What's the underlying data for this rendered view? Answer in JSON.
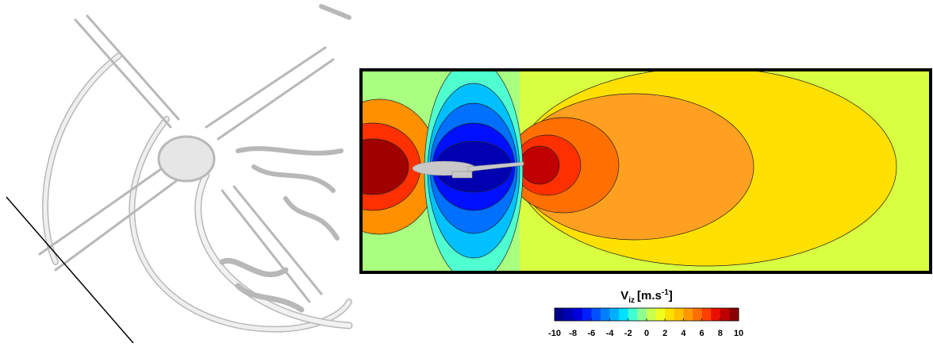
{
  "chart_data": {
    "type": "colorbar",
    "title": {
      "symbol": "V",
      "subscript": "iz",
      "unit": "[m.s",
      "superscript": "-1",
      "close": "]"
    },
    "clim": [
      -10,
      10
    ],
    "ticks": [
      -10,
      -8,
      -6,
      -4,
      -2,
      0,
      2,
      4,
      6,
      8,
      10
    ],
    "levels": [
      -10,
      -9,
      -8,
      -7,
      -6,
      -5,
      -4,
      -3,
      -2,
      -1,
      0,
      1,
      2,
      3,
      4,
      5,
      6,
      7,
      8,
      9,
      10
    ],
    "colors": [
      "#00008b",
      "#0000b5",
      "#0000e0",
      "#0020ff",
      "#0050ff",
      "#0080ff",
      "#00b0ff",
      "#00e0ff",
      "#40ffd0",
      "#90ff90",
      "#c8ff50",
      "#f0ff20",
      "#ffe000",
      "#ffc000",
      "#ff9800",
      "#ff7000",
      "#ff4000",
      "#e81000",
      "#c00000",
      "#8b0000"
    ]
  }
}
